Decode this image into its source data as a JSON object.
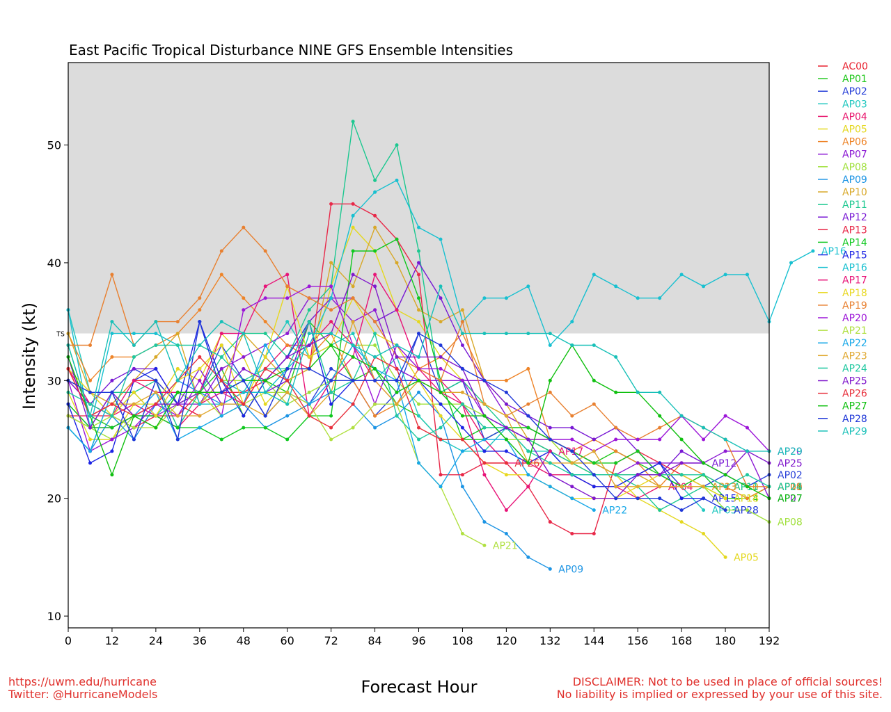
{
  "chart_data": {
    "type": "line",
    "title": "East Pacific Tropical Disturbance NINE GFS Ensemble Intensities",
    "xlabel": "Forecast Hour",
    "ylabel": "Intensity (kt)",
    "xlim": [
      0,
      192
    ],
    "ylim": [
      9,
      57
    ],
    "xticks": [
      0,
      12,
      24,
      36,
      48,
      60,
      72,
      84,
      96,
      108,
      120,
      132,
      144,
      156,
      168,
      180,
      192
    ],
    "yticks": [
      10,
      20,
      30,
      40,
      50
    ],
    "shade_above": 34,
    "ts_label": "TS",
    "legend_position": "right",
    "x_step": 6,
    "series": [
      {
        "name": "AC00",
        "color": "#e8202e",
        "values": [
          31,
          27,
          28,
          30,
          30,
          28,
          27
        ]
      },
      {
        "name": "AP01",
        "color": "#22c81e",
        "values": [
          33,
          27,
          26,
          27,
          27,
          29,
          29,
          31,
          27,
          30,
          29,
          35,
          33,
          30,
          31,
          28,
          27,
          25,
          25,
          25,
          26,
          26,
          25,
          24,
          23,
          24,
          23,
          22,
          21,
          21,
          20,
          20,
          21
        ]
      },
      {
        "name": "AP02",
        "color": "#2840d8",
        "values": [
          28,
          26,
          29,
          31,
          30,
          28,
          29,
          33,
          30,
          27,
          29,
          28,
          31,
          30,
          27,
          29,
          34,
          29,
          30,
          25,
          26,
          25,
          24,
          22,
          22,
          22,
          22,
          23,
          21,
          21,
          22,
          21,
          22
        ]
      },
      {
        "name": "AP03",
        "color": "#22c8c0",
        "values": [
          36,
          29,
          27,
          29,
          27,
          29,
          28,
          30,
          29,
          32,
          35,
          32,
          33,
          34,
          30,
          32,
          27,
          25,
          24,
          24,
          26,
          24,
          24,
          22,
          22,
          22,
          22,
          22,
          21,
          19
        ]
      },
      {
        "name": "AP04",
        "color": "#e8186e",
        "values": [
          30,
          28,
          27,
          28,
          27,
          26,
          28,
          29,
          28,
          31,
          33,
          33,
          35,
          33,
          30,
          28,
          31,
          30,
          28,
          25,
          23,
          23,
          22,
          22,
          21,
          21,
          20,
          21
        ]
      },
      {
        "name": "AP05",
        "color": "#e4d820",
        "values": [
          29,
          25,
          25,
          28,
          28,
          31,
          30,
          34,
          32,
          28,
          30,
          31,
          38,
          43,
          41,
          36,
          35,
          32,
          30,
          28,
          27,
          26,
          25,
          23,
          22,
          22,
          20,
          19,
          18,
          17,
          15
        ]
      },
      {
        "name": "AP06",
        "color": "#ee8428",
        "values": [
          34,
          30,
          32,
          32,
          33,
          34,
          36,
          39,
          37,
          35,
          33,
          32,
          34,
          30,
          27,
          28,
          31,
          32,
          34,
          30,
          30,
          31,
          25,
          24,
          25,
          24,
          23,
          21,
          23,
          22,
          21,
          20,
          21
        ]
      },
      {
        "name": "AP07",
        "color": "#8c1ad4",
        "values": [
          27,
          26,
          26,
          27,
          27,
          28,
          28,
          31,
          32,
          33,
          34,
          37,
          37,
          35,
          36,
          31,
          30,
          30,
          30,
          30,
          27,
          26,
          25,
          24,
          23,
          22,
          23,
          23,
          23,
          23,
          24,
          24,
          20
        ]
      },
      {
        "name": "AP08",
        "color": "#a0e03c",
        "values": [
          27,
          26,
          25,
          27,
          26,
          29,
          28,
          30,
          30,
          30,
          28,
          29,
          30,
          33,
          33,
          30,
          28,
          28,
          28,
          27,
          25,
          25,
          25,
          23,
          23,
          22,
          22,
          22,
          22,
          21,
          19,
          19,
          18
        ]
      },
      {
        "name": "AP09",
        "color": "#1c94e4",
        "values": [
          26,
          24,
          27,
          25,
          28,
          30,
          29,
          28,
          28,
          26,
          27,
          28,
          29,
          28,
          26,
          27,
          29,
          27,
          21,
          18,
          17,
          15,
          14
        ]
      },
      {
        "name": "AP10",
        "color": "#d8a828",
        "values": [
          34,
          29,
          28,
          30,
          32,
          34,
          28,
          30,
          34,
          32,
          30,
          31,
          40,
          38,
          43,
          40,
          36,
          35,
          36,
          30,
          28,
          25,
          24,
          23,
          23,
          22,
          22,
          21,
          21,
          21,
          21
        ]
      },
      {
        "name": "AP11",
        "color": "#1cc890",
        "values": [
          26,
          24,
          29,
          29,
          30,
          26,
          29,
          32,
          34,
          34,
          32,
          36,
          38,
          52,
          47,
          50,
          41,
          29,
          30,
          28,
          26,
          25,
          24,
          23,
          22,
          22,
          21,
          19,
          20,
          21,
          21
        ]
      },
      {
        "name": "AP12",
        "color": "#7818d4",
        "values": [
          30,
          28,
          30,
          31,
          31,
          28,
          31,
          28,
          29,
          29,
          30,
          35,
          37,
          37,
          35,
          36,
          40,
          37,
          33,
          30,
          28,
          27,
          26,
          26,
          25,
          26,
          24,
          22,
          24,
          23
        ]
      },
      {
        "name": "AP13",
        "color": "#e82848",
        "values": [
          27,
          27,
          27,
          26,
          27,
          27,
          29,
          29,
          29,
          30,
          32,
          31,
          45,
          45,
          44,
          42,
          39,
          22,
          22,
          23,
          23,
          21,
          18,
          17,
          17,
          23,
          24,
          23,
          22,
          21
        ]
      },
      {
        "name": "AP14",
        "color": "#10c820",
        "values": [
          28,
          26,
          26,
          27,
          27,
          26,
          26,
          25,
          26,
          26,
          25,
          27,
          27,
          41,
          41,
          42,
          37,
          30,
          25,
          26,
          26,
          26,
          25,
          24,
          23,
          23,
          24,
          22,
          21,
          22,
          20
        ]
      },
      {
        "name": "AP15",
        "color": "#1c24e4",
        "values": [
          28,
          23,
          24,
          30,
          31,
          28,
          35,
          30,
          27,
          30,
          32,
          35,
          28,
          30,
          30,
          30,
          30,
          28,
          26,
          24,
          24,
          23,
          24,
          22,
          21,
          21,
          22,
          23,
          20,
          20
        ]
      },
      {
        "name": "AP16",
        "color": "#18c0d0",
        "values": [
          36,
          26,
          34,
          34,
          34,
          33,
          28,
          28,
          29,
          29,
          31,
          33,
          37,
          44,
          46,
          47,
          43,
          42,
          35,
          37,
          37,
          38,
          33,
          35,
          39,
          38,
          37,
          37,
          39,
          38,
          39,
          39,
          35,
          40,
          41
        ]
      },
      {
        "name": "AP17",
        "color": "#e81478",
        "values": [
          31,
          28,
          27,
          30,
          29,
          29,
          29,
          34,
          34,
          38,
          39,
          27,
          30,
          32,
          39,
          36,
          31,
          29,
          28,
          22,
          19,
          21,
          24
        ]
      },
      {
        "name": "AP18",
        "color": "#e8d820",
        "values": [
          31,
          29,
          27,
          29,
          27,
          30,
          31,
          33,
          28,
          32,
          38,
          32,
          33,
          37,
          34,
          33,
          30,
          27,
          25,
          23,
          22,
          22,
          21,
          20,
          20,
          20,
          21,
          22,
          22,
          21,
          20
        ]
      },
      {
        "name": "AP19",
        "color": "#e88030",
        "values": [
          33,
          33,
          39,
          33,
          35,
          35,
          37,
          41,
          43,
          41,
          38,
          37,
          36,
          37,
          35,
          32,
          31,
          30,
          35,
          28,
          27,
          28,
          29,
          27,
          28,
          26,
          25,
          26,
          27,
          26,
          25,
          21,
          21
        ]
      },
      {
        "name": "AP20",
        "color": "#9c16d8",
        "values": [
          30,
          24,
          25,
          26,
          28,
          27,
          30,
          27,
          36,
          37,
          37,
          38,
          38,
          33,
          28,
          33,
          31,
          31,
          30,
          27,
          26,
          25,
          25,
          25,
          24,
          25,
          25,
          25,
          27,
          25,
          27,
          26,
          24
        ]
      },
      {
        "name": "AP21",
        "color": "#b0e040",
        "values": [
          27,
          26,
          27,
          26,
          26,
          28,
          29,
          27,
          28,
          29,
          29,
          28,
          25,
          26,
          28,
          28,
          23,
          21,
          17,
          16
        ]
      },
      {
        "name": "AP22",
        "color": "#18a8e8",
        "values": [
          26,
          24,
          29,
          27,
          29,
          25,
          26,
          27,
          28,
          33,
          30,
          28,
          30,
          33,
          31,
          30,
          23,
          21,
          24,
          25,
          25,
          22,
          21,
          20,
          19
        ]
      },
      {
        "name": "AP23",
        "color": "#e0a830",
        "values": [
          30,
          29,
          28,
          28,
          29,
          27,
          27,
          28,
          28,
          27,
          29,
          27,
          29,
          35,
          30,
          28,
          30,
          29,
          29,
          28,
          27,
          23,
          23,
          23,
          24,
          21,
          21,
          21,
          21,
          21
        ]
      },
      {
        "name": "AP24",
        "color": "#20c8a0",
        "values": [
          29,
          28,
          27,
          32,
          33,
          33,
          33,
          32,
          30,
          31,
          31,
          35,
          29,
          30,
          34,
          27,
          25,
          26,
          28,
          26,
          26,
          24,
          23,
          22,
          22,
          22,
          22,
          22,
          22,
          22,
          21,
          22,
          21
        ]
      },
      {
        "name": "AP25",
        "color": "#8018cc",
        "values": [
          32,
          26,
          29,
          27,
          28,
          28,
          29,
          29,
          31,
          30,
          32,
          33,
          34,
          39,
          38,
          32,
          32,
          32,
          31,
          27,
          26,
          25,
          22,
          21,
          20,
          20,
          22,
          22,
          23,
          23,
          22,
          24,
          23
        ]
      },
      {
        "name": "AP26",
        "color": "#e8303c",
        "values": [
          31,
          27,
          28,
          27,
          28,
          30,
          32,
          30,
          28,
          31,
          30,
          27,
          26,
          28,
          32,
          31,
          26,
          25,
          25,
          23,
          23
        ]
      },
      {
        "name": "AP27",
        "color": "#10c010",
        "values": [
          32,
          27,
          22,
          27,
          26,
          29,
          29,
          29,
          30,
          30,
          31,
          31,
          33,
          32,
          31,
          29,
          30,
          29,
          27,
          27,
          25,
          23,
          30,
          33,
          30,
          29,
          29,
          27,
          25,
          23,
          22,
          21,
          20
        ]
      },
      {
        "name": "AP28",
        "color": "#2038d8",
        "values": [
          30,
          29,
          29,
          25,
          30,
          25,
          35,
          29,
          30,
          27,
          31,
          31,
          30,
          30,
          30,
          30,
          34,
          33,
          31,
          30,
          29,
          27,
          25,
          24,
          22,
          20,
          20,
          20,
          19,
          20,
          19
        ]
      },
      {
        "name": "AP29",
        "color": "#18c0b8",
        "values": [
          33,
          27,
          35,
          33,
          35,
          30,
          33,
          35,
          34,
          29,
          28,
          34,
          34,
          33,
          32,
          33,
          32,
          38,
          34,
          34,
          34,
          34,
          34,
          33,
          33,
          32,
          29,
          29,
          27,
          26,
          25,
          24,
          24
        ]
      }
    ]
  },
  "footer": {
    "left_line1": "https://uwm.edu/hurricane",
    "left_line2": "Twitter: @HurricaneModels",
    "right_line1": "DISCLAIMER: Not to be used in place of official sources!",
    "right_line2": "No liability is implied or expressed by your use of this site."
  }
}
